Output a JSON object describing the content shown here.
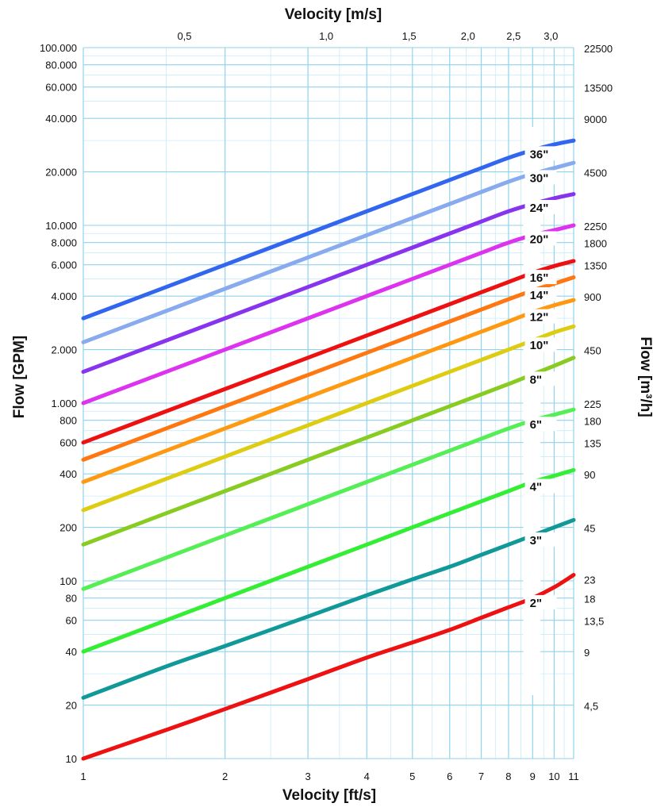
{
  "chart_data": {
    "type": "line",
    "title": "",
    "xlabel": "Velocity [ft/s]",
    "x2label": "Velocity [m/s]",
    "ylabel": "Flow [GPM]",
    "y2label": "Flow [m³/h]",
    "x_scale": "log",
    "y_scale": "log",
    "xlim": [
      1,
      11
    ],
    "ylim": [
      10,
      100000
    ],
    "grid": true,
    "legend": "inline-labels",
    "x_ticks": [
      {
        "value": 1,
        "label": "1"
      },
      {
        "value": 2,
        "label": "2"
      },
      {
        "value": 3,
        "label": "3"
      },
      {
        "value": 4,
        "label": "4"
      },
      {
        "value": 5,
        "label": "5"
      },
      {
        "value": 6,
        "label": "6"
      },
      {
        "value": 7,
        "label": "7"
      },
      {
        "value": 8,
        "label": "8"
      },
      {
        "value": 9,
        "label": "9"
      },
      {
        "value": 10,
        "label": "10"
      },
      {
        "value": 11,
        "label": "11"
      }
    ],
    "x2_ticks": [
      {
        "value": 1.64,
        "label": "0,5"
      },
      {
        "value": 3.28,
        "label": "1,0"
      },
      {
        "value": 4.92,
        "label": "1,5"
      },
      {
        "value": 6.56,
        "label": "2,0"
      },
      {
        "value": 8.2,
        "label": "2,5"
      },
      {
        "value": 9.84,
        "label": "3,0"
      }
    ],
    "y_ticks": [
      {
        "value": 10,
        "label": "10"
      },
      {
        "value": 20,
        "label": "20"
      },
      {
        "value": 40,
        "label": "40"
      },
      {
        "value": 60,
        "label": "60"
      },
      {
        "value": 80,
        "label": "80"
      },
      {
        "value": 100,
        "label": "100"
      },
      {
        "value": 200,
        "label": "200"
      },
      {
        "value": 400,
        "label": "400"
      },
      {
        "value": 600,
        "label": "600"
      },
      {
        "value": 800,
        "label": "800"
      },
      {
        "value": 1000,
        "label": "1.000"
      },
      {
        "value": 2000,
        "label": "2.000"
      },
      {
        "value": 4000,
        "label": "4.000"
      },
      {
        "value": 6000,
        "label": "6.000"
      },
      {
        "value": 8000,
        "label": "8.000"
      },
      {
        "value": 10000,
        "label": "10.000"
      },
      {
        "value": 20000,
        "label": "20.000"
      },
      {
        "value": 40000,
        "label": "40.000"
      },
      {
        "value": 60000,
        "label": "60.000"
      },
      {
        "value": 80000,
        "label": "80.000"
      },
      {
        "value": 100000,
        "label": "100.000"
      }
    ],
    "y2_ticks": [
      {
        "value": 19.8,
        "label": "4,5"
      },
      {
        "value": 39.6,
        "label": "9"
      },
      {
        "value": 59.4,
        "label": "13,5"
      },
      {
        "value": 79.3,
        "label": "18"
      },
      {
        "value": 101.3,
        "label": "23"
      },
      {
        "value": 198,
        "label": "45"
      },
      {
        "value": 396,
        "label": "90"
      },
      {
        "value": 594,
        "label": "135"
      },
      {
        "value": 793,
        "label": "180"
      },
      {
        "value": 991,
        "label": "225"
      },
      {
        "value": 1981,
        "label": "450"
      },
      {
        "value": 3963,
        "label": "900"
      },
      {
        "value": 5944,
        "label": "1350"
      },
      {
        "value": 7925,
        "label": "1800"
      },
      {
        "value": 9906,
        "label": "2250"
      },
      {
        "value": 19813,
        "label": "4500"
      },
      {
        "value": 39626,
        "label": "9000"
      },
      {
        "value": 59439,
        "label": "13500"
      },
      {
        "value": 99065,
        "label": "22500"
      }
    ],
    "x_samples": [
      1,
      1.5,
      2,
      3,
      4,
      5,
      6,
      7,
      8,
      9,
      10,
      11
    ],
    "series": [
      {
        "name": "2\"",
        "color": "#ee1111",
        "values": [
          10,
          14.5,
          19,
          28,
          37,
          45,
          53,
          62,
          71,
          80,
          92,
          108
        ]
      },
      {
        "name": "3\"",
        "color": "#119999",
        "values": [
          22,
          33,
          43,
          63,
          83,
          102,
          120,
          140,
          160,
          180,
          200,
          220
        ]
      },
      {
        "name": "4\"",
        "color": "#33ee33",
        "values": [
          40,
          60,
          80,
          120,
          160,
          200,
          240,
          280,
          320,
          360,
          390,
          420
        ]
      },
      {
        "name": "6\"",
        "color": "#55ee55",
        "values": [
          90,
          135,
          180,
          270,
          360,
          450,
          540,
          630,
          720,
          800,
          860,
          920
        ]
      },
      {
        "name": "8\"",
        "color": "#88cc22",
        "values": [
          160,
          240,
          320,
          480,
          640,
          800,
          960,
          1120,
          1280,
          1450,
          1620,
          1800
        ]
      },
      {
        "name": "10\"",
        "color": "#ddcc11",
        "values": [
          250,
          375,
          500,
          750,
          1000,
          1250,
          1500,
          1750,
          2000,
          2250,
          2500,
          2700
        ]
      },
      {
        "name": "12\"",
        "color": "#ff9911",
        "values": [
          360,
          540,
          720,
          1080,
          1440,
          1800,
          2160,
          2520,
          2880,
          3250,
          3550,
          3800
        ]
      },
      {
        "name": "14\"",
        "color": "#ff7711",
        "values": [
          480,
          720,
          960,
          1440,
          1920,
          2400,
          2880,
          3360,
          3840,
          4300,
          4700,
          5100
        ]
      },
      {
        "name": "16\"",
        "color": "#ee1111",
        "values": [
          600,
          900,
          1200,
          1800,
          2400,
          3000,
          3600,
          4200,
          4800,
          5400,
          5900,
          6300
        ]
      },
      {
        "name": "20\"",
        "color": "#dd33ee",
        "values": [
          1000,
          1500,
          2000,
          3000,
          4000,
          5000,
          6000,
          7000,
          8000,
          8800,
          9400,
          10000
        ]
      },
      {
        "name": "24\"",
        "color": "#8833ee",
        "values": [
          1500,
          2250,
          3000,
          4500,
          6000,
          7500,
          9000,
          10500,
          12000,
          13200,
          14200,
          15000
        ]
      },
      {
        "name": "30\"",
        "color": "#88aaee",
        "values": [
          2200,
          3300,
          4400,
          6600,
          8800,
          11000,
          13200,
          15400,
          17600,
          19500,
          21000,
          22500
        ]
      },
      {
        "name": "36\"",
        "color": "#3366ee",
        "values": [
          3000,
          4500,
          6000,
          9000,
          12000,
          15000,
          18000,
          21000,
          24000,
          26500,
          28500,
          30000
        ]
      }
    ]
  }
}
